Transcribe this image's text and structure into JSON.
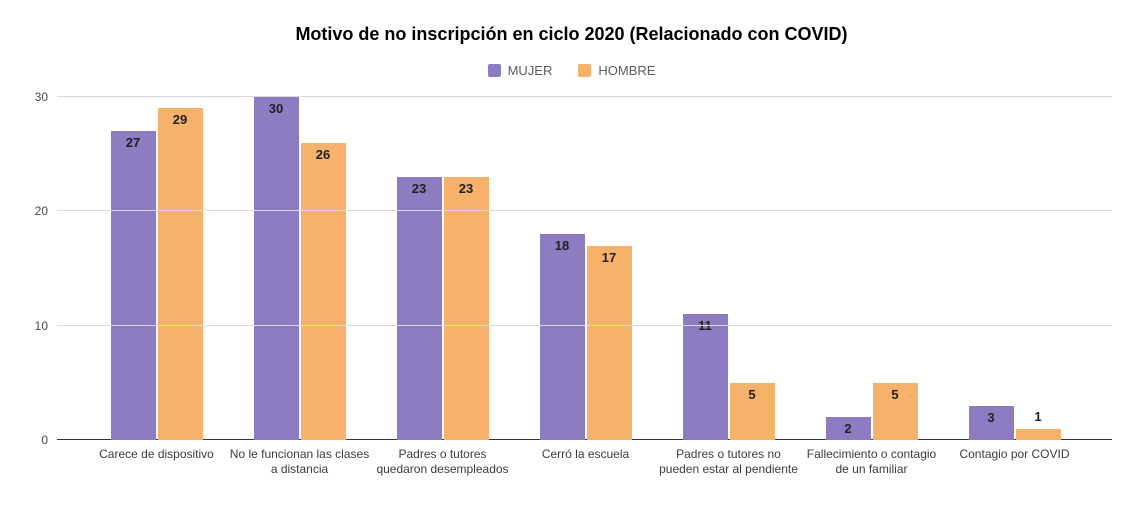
{
  "chart_data": {
    "type": "bar",
    "title": "Motivo de no inscripción en ciclo 2020 (Relacionado con COVID)",
    "categories": [
      "Carece de dispositivo",
      "No le funcionan las clases a distancia",
      "Padres o tutores quedaron desempleados",
      "Cerró la escuela",
      "Padres o tutores no pueden estar al pendiente",
      "Fallecimiento o contagio de un familiar",
      "Contagio por COVID"
    ],
    "series": [
      {
        "name": "MUJER",
        "color": "#8e7cc3",
        "values": [
          27,
          30,
          23,
          18,
          11,
          2,
          3
        ]
      },
      {
        "name": "HOMBRE",
        "color": "#f6b26b",
        "values": [
          29,
          26,
          23,
          17,
          5,
          5,
          1
        ]
      }
    ],
    "xlabel": "",
    "ylabel": "",
    "ylim": [
      0,
      30
    ],
    "yticks": [
      0,
      10,
      20,
      30
    ],
    "grid": true,
    "legend_position": "top",
    "colors": {
      "gridline": "#d9d9d9",
      "axis_line": "#333333",
      "value_label": "#1f1f1f",
      "tick_label": "#4a4a4a",
      "category_label": "#3b3b3b",
      "legend_label": "#5c5c5c",
      "background": "#ffffff"
    }
  }
}
